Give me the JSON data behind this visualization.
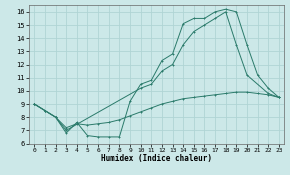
{
  "xlabel": "Humidex (Indice chaleur)",
  "xlim": [
    -0.5,
    23.5
  ],
  "ylim": [
    6,
    16.5
  ],
  "yticks": [
    6,
    7,
    8,
    9,
    10,
    11,
    12,
    13,
    14,
    15,
    16
  ],
  "xticks": [
    0,
    1,
    2,
    3,
    4,
    5,
    6,
    7,
    8,
    9,
    10,
    11,
    12,
    13,
    14,
    15,
    16,
    17,
    18,
    19,
    20,
    21,
    22,
    23
  ],
  "bg_color": "#cce8e8",
  "grid_color": "#b0d4d4",
  "line_color": "#2a7a6a",
  "line1_x": [
    0,
    1,
    2,
    3,
    4,
    5,
    6,
    7,
    8,
    9,
    10,
    11,
    12,
    13,
    14,
    15,
    16,
    17,
    18,
    19,
    20,
    21,
    22,
    23
  ],
  "line1_y": [
    9.0,
    8.5,
    8.0,
    6.8,
    7.6,
    6.6,
    6.5,
    6.5,
    6.5,
    9.2,
    10.5,
    10.8,
    12.3,
    12.8,
    15.1,
    15.5,
    15.5,
    16.0,
    16.2,
    16.0,
    13.5,
    11.2,
    10.2,
    9.5
  ],
  "line2_x": [
    0,
    1,
    2,
    3,
    10,
    11,
    12,
    13,
    14,
    15,
    16,
    17,
    18,
    19,
    20,
    22,
    23
  ],
  "line2_y": [
    9.0,
    8.5,
    8.0,
    7.0,
    10.2,
    10.5,
    11.5,
    12.0,
    13.5,
    14.5,
    15.0,
    15.5,
    16.0,
    13.5,
    11.2,
    9.8,
    9.5
  ],
  "line3_x": [
    0,
    1,
    2,
    3,
    4,
    5,
    6,
    7,
    8,
    9,
    10,
    11,
    12,
    13,
    14,
    15,
    16,
    17,
    18,
    19,
    20,
    21,
    22,
    23
  ],
  "line3_y": [
    9.0,
    8.5,
    8.0,
    7.2,
    7.5,
    7.4,
    7.5,
    7.6,
    7.8,
    8.1,
    8.4,
    8.7,
    9.0,
    9.2,
    9.4,
    9.5,
    9.6,
    9.7,
    9.8,
    9.9,
    9.9,
    9.8,
    9.7,
    9.5
  ]
}
